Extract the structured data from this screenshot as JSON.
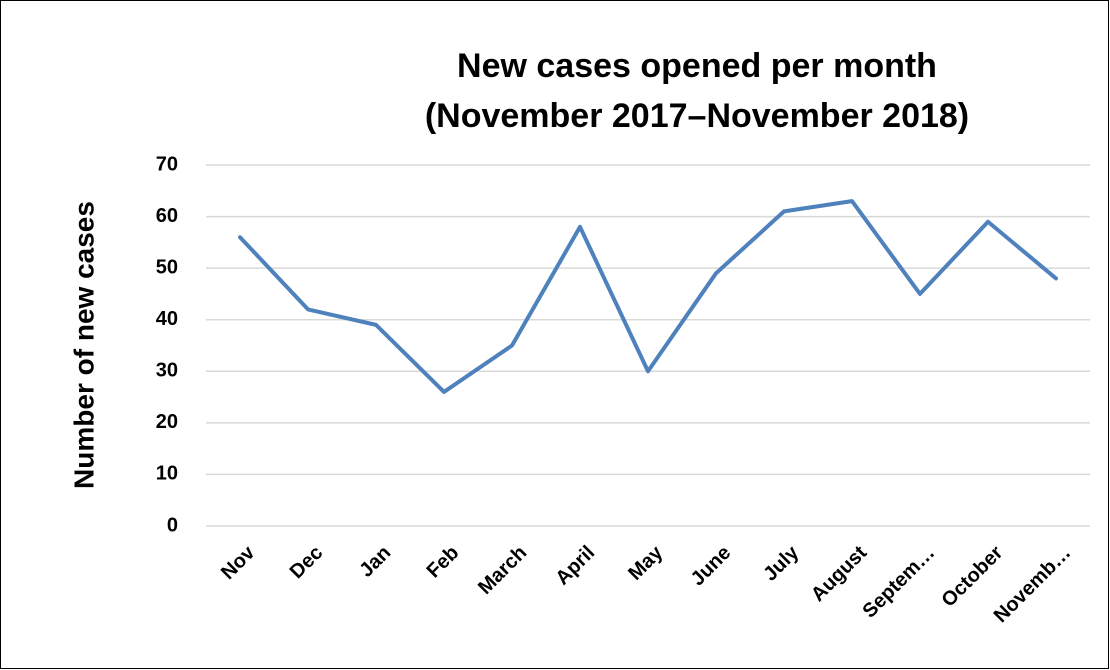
{
  "chart_data": {
    "type": "line",
    "title": "New cases opened per month",
    "subtitle": "(November 2017–November 2018)",
    "y_label": "Number of new cases",
    "categories": [
      "Nov",
      "Dec",
      "Jan",
      "Feb",
      "March",
      "April",
      "May",
      "June",
      "July",
      "August",
      "Septem…",
      "October",
      "Novemb…"
    ],
    "series": [
      {
        "name": "New cases",
        "color": "#4f81bd",
        "values": [
          56,
          42,
          39,
          26,
          35,
          58,
          30,
          49,
          61,
          63,
          45,
          59,
          48
        ]
      }
    ],
    "ylim": [
      0,
      70
    ],
    "yticks": [
      0,
      10,
      20,
      30,
      40,
      50,
      60,
      70
    ],
    "grid": true
  }
}
